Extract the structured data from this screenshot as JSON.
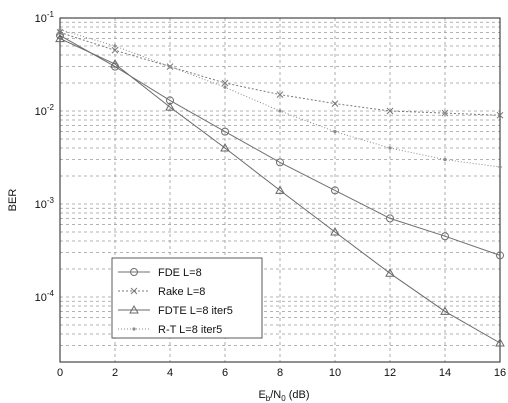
{
  "chart_data": {
    "type": "line",
    "xlabel": {
      "base": "E",
      "sub1": "b",
      "mid": "/N",
      "sub2": "0",
      "suffix": " (dB)"
    },
    "ylabel": "BER",
    "xlim": [
      0,
      16
    ],
    "ylim": [
      2e-05,
      0.1
    ],
    "yscale": "log",
    "x_ticks": [
      "0",
      "2",
      "4",
      "6",
      "8",
      "10",
      "12",
      "14",
      "16"
    ],
    "y_ticks": [
      {
        "base": "10",
        "exp": "-1",
        "value": 0.1
      },
      {
        "base": "10",
        "exp": "-2",
        "value": 0.01
      },
      {
        "base": "10",
        "exp": "-3",
        "value": 0.001
      },
      {
        "base": "10",
        "exp": "-4",
        "value": 0.0001
      }
    ],
    "grid": true,
    "legend_position": "bottom-left",
    "series": [
      {
        "name": "FDE L=8",
        "marker": "circle",
        "color": "#6f6f6f",
        "x": [
          0,
          2,
          4,
          6,
          8,
          10,
          12,
          14,
          16
        ],
        "y": [
          0.065,
          0.03,
          0.013,
          0.006,
          0.0028,
          0.0014,
          0.0007,
          0.00045,
          0.00028
        ]
      },
      {
        "name": "Rake L=8",
        "marker": "x",
        "color": "#7a7a7a",
        "x": [
          0,
          2,
          4,
          6,
          8,
          10,
          12,
          14,
          16
        ],
        "y": [
          0.07,
          0.045,
          0.03,
          0.02,
          0.015,
          0.012,
          0.01,
          0.0095,
          0.009
        ]
      },
      {
        "name": "FDTE L=8 iter5",
        "marker": "triangle",
        "color": "#6a6a6a",
        "x": [
          0,
          2,
          4,
          6,
          8,
          10,
          12,
          14,
          16
        ],
        "y": [
          0.06,
          0.032,
          0.011,
          0.004,
          0.0014,
          0.0005,
          0.00018,
          7e-05,
          3.2e-05
        ]
      },
      {
        "name": "R-T L=8 iter5",
        "marker": "dot",
        "color": "#8a8a8a",
        "x": [
          0,
          2,
          4,
          6,
          8,
          10,
          12,
          14,
          16
        ],
        "y": [
          0.075,
          0.05,
          0.03,
          0.018,
          0.01,
          0.006,
          0.004,
          0.003,
          0.0025
        ]
      }
    ]
  }
}
